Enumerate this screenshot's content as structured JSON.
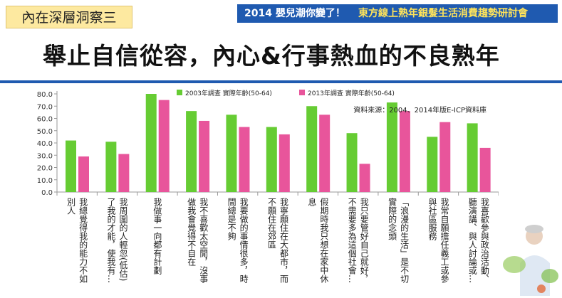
{
  "header": {
    "tag": "內在深層洞察三",
    "banner_left": "2014 嬰兒潮你變了！",
    "banner_right": "東方線上熟年銀髮生活消費趨勢研討會",
    "title": "舉止自信從容，內心&行事熱血的不良熟年"
  },
  "colors": {
    "series_2003": "#66cc33",
    "series_2013": "#e8559b",
    "accent": "#1f5ab0"
  },
  "chart_data": {
    "type": "bar",
    "source_note": "資料來源：2004、2014年版E-ICP資料庫",
    "ylim": [
      0,
      80
    ],
    "yticks": [
      "0.0",
      "10.0",
      "20.0",
      "30.0",
      "40.0",
      "50.0",
      "60.0",
      "70.0",
      "80.0"
    ],
    "categories": [
      [
        "我總覺得我的能力不如",
        "別人"
      ],
      [
        "我周圍的人輕忽(低估)",
        "了我的才能，使我有…"
      ],
      [
        "我做事一向都有計劃"
      ],
      [
        "我不喜歡太空閒，沒事",
        "做我會覺得不自在"
      ],
      [
        "我要做的事情很多，時",
        "間總是不夠"
      ],
      [
        "我寧願住在大都市，而",
        "不願住在郊區"
      ],
      [
        "假期時我只想在家中休",
        "息"
      ],
      [
        "我只要管好自己就好，",
        "不需要多為這個社會…"
      ],
      [
        "「浪漫的生活」是不切",
        "實際的念頭"
      ],
      [
        "我常自願擔任義工或參",
        "與社區服務"
      ],
      [
        "我喜歡參與政治活動、",
        "聽演講、與人討論或…"
      ]
    ],
    "series": [
      {
        "name": "2003年調查 實際年齡(50-64)",
        "values": [
          42,
          41,
          80,
          66,
          63,
          53,
          70,
          48,
          73,
          45,
          56
        ]
      },
      {
        "name": "2013年調查 實際年齡(50-64)",
        "values": [
          29,
          31,
          75,
          58,
          53,
          47,
          63,
          23,
          66,
          57,
          36
        ]
      }
    ]
  }
}
